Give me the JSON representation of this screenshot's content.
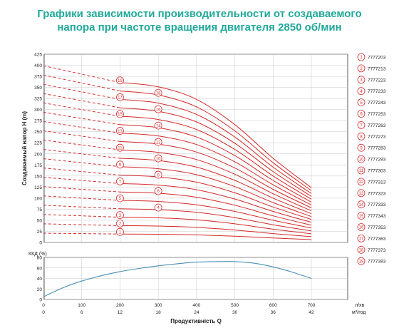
{
  "title": {
    "line1": "Графики зависимости производительности от создаваемого",
    "line2": "напора при частоте вращения двигателя 2850 об/мин"
  },
  "colors": {
    "title": "#21a99a",
    "head_curves": "#d42a2a",
    "efficiency_curve": "#4b8fb5",
    "axis": "#333333",
    "grid": "#c8c8c8"
  },
  "chart_data": [
    {
      "type": "line",
      "ylabel": "Создаваемый напор H (m)",
      "ylim": [
        0,
        425
      ],
      "yticks": [
        0,
        25,
        50,
        75,
        100,
        125,
        150,
        175,
        200,
        225,
        250,
        275,
        300,
        325,
        350,
        375,
        400,
        425
      ],
      "xlim": [
        0,
        700
      ],
      "grid": true,
      "x_points": [
        0,
        100,
        200,
        300,
        400,
        500,
        600,
        700
      ],
      "solid_from_x": 200,
      "curve_marker_x": [
        200,
        200,
        200,
        300,
        200,
        300,
        200,
        300,
        200,
        300,
        200,
        300,
        200,
        300,
        200,
        300,
        200,
        300,
        200
      ],
      "legend_position": "right",
      "legend": [
        {
          "num": "1",
          "model": "7777203"
        },
        {
          "num": "2",
          "model": "7777213"
        },
        {
          "num": "3",
          "model": "7777223"
        },
        {
          "num": "4",
          "model": "7777233"
        },
        {
          "num": "5",
          "model": "7777243"
        },
        {
          "num": "6",
          "model": "7777253"
        },
        {
          "num": "7",
          "model": "7777263"
        },
        {
          "num": "8",
          "model": "7777273"
        },
        {
          "num": "9",
          "model": "7777283"
        },
        {
          "num": "10",
          "model": "7777293"
        },
        {
          "num": "11",
          "model": "7777303"
        },
        {
          "num": "12",
          "model": "7777313"
        },
        {
          "num": "13",
          "model": "7777323"
        },
        {
          "num": "14",
          "model": "7777333"
        },
        {
          "num": "15",
          "model": "7777343"
        },
        {
          "num": "16",
          "model": "7777353"
        },
        {
          "num": "17",
          "model": "7777363"
        },
        {
          "num": "18",
          "model": "7777373"
        },
        {
          "num": "19",
          "model": "7777383"
        }
      ],
      "series": [
        {
          "name": "1",
          "values": [
            21,
            20,
            19,
            18.5,
            17,
            14,
            10,
            6.5
          ]
        },
        {
          "name": "2",
          "values": [
            42,
            40,
            38,
            37,
            34,
            28,
            20,
            13
          ]
        },
        {
          "name": "3",
          "values": [
            63,
            60,
            57,
            55.5,
            51,
            42,
            30,
            19.5
          ]
        },
        {
          "name": "4",
          "values": [
            84,
            80,
            76,
            74,
            68,
            56,
            40,
            26
          ]
        },
        {
          "name": "5",
          "values": [
            105,
            100,
            95,
            92.5,
            85,
            70,
            50,
            32.5
          ]
        },
        {
          "name": "6",
          "values": [
            126,
            120,
            114,
            111,
            102,
            84,
            60,
            39
          ]
        },
        {
          "name": "7",
          "values": [
            147,
            140,
            133,
            129.5,
            119,
            98,
            70,
            45.5
          ]
        },
        {
          "name": "8",
          "values": [
            168,
            160,
            152,
            148,
            136,
            112,
            80,
            52
          ]
        },
        {
          "name": "9",
          "values": [
            189,
            180,
            171,
            166.5,
            153,
            126,
            90,
            58.5
          ]
        },
        {
          "name": "10",
          "values": [
            210,
            200,
            190,
            185,
            170,
            140,
            100,
            65
          ]
        },
        {
          "name": "11",
          "values": [
            231,
            220,
            209,
            203.5,
            187,
            154,
            110,
            71.5
          ]
        },
        {
          "name": "12",
          "values": [
            252,
            240,
            228,
            222,
            204,
            168,
            120,
            78
          ]
        },
        {
          "name": "13",
          "values": [
            273,
            260,
            247,
            240.5,
            221,
            182,
            130,
            84.5
          ]
        },
        {
          "name": "14",
          "values": [
            294,
            280,
            266,
            259,
            238,
            196,
            140,
            91
          ]
        },
        {
          "name": "15",
          "values": [
            315,
            300,
            285,
            277.5,
            255,
            210,
            150,
            97.5
          ]
        },
        {
          "name": "16",
          "values": [
            336,
            320,
            304,
            296,
            272,
            224,
            160,
            104
          ]
        },
        {
          "name": "17",
          "values": [
            357,
            340,
            323,
            314.5,
            289,
            238,
            170,
            110.5
          ]
        },
        {
          "name": "18",
          "values": [
            378,
            360,
            342,
            333,
            306,
            252,
            180,
            117
          ]
        },
        {
          "name": "19",
          "values": [
            399,
            380,
            361,
            351.5,
            323,
            266,
            190,
            123.5
          ]
        }
      ]
    },
    {
      "type": "line",
      "ylabel": "ККД (%)",
      "ylim": [
        0,
        80
      ],
      "yticks": [
        0,
        20,
        40,
        60,
        80
      ],
      "xlim": [
        0,
        700
      ],
      "xticks": [
        0,
        100,
        200,
        300,
        400,
        500,
        600,
        700
      ],
      "xticks_secondary": [
        0,
        6,
        12,
        18,
        24,
        30,
        36,
        42
      ],
      "xunit": "л/хв",
      "xunit_secondary": "м³/год",
      "xlabel": "Продуктивність Q",
      "grid": true,
      "series": [
        {
          "x": [
            0,
            50,
            100,
            150,
            200,
            250,
            300,
            350,
            400,
            450,
            500,
            550,
            600,
            650,
            700
          ],
          "values": [
            5,
            22,
            35,
            45,
            53,
            59,
            64,
            68,
            71,
            72,
            72,
            69,
            62,
            52,
            40
          ]
        }
      ]
    }
  ]
}
